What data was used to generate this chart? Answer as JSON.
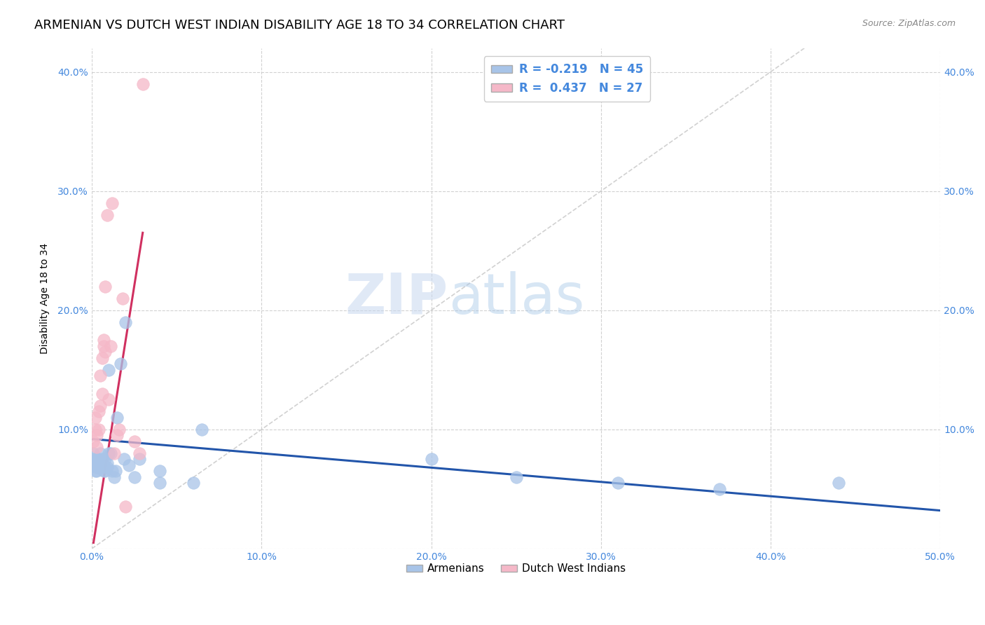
{
  "title": "ARMENIAN VS DUTCH WEST INDIAN DISABILITY AGE 18 TO 34 CORRELATION CHART",
  "source": "Source: ZipAtlas.com",
  "ylabel": "Disability Age 18 to 34",
  "xlabel": "",
  "xlim": [
    0.0,
    0.5
  ],
  "ylim": [
    0.0,
    0.42
  ],
  "xticks": [
    0.0,
    0.1,
    0.2,
    0.3,
    0.4,
    0.5
  ],
  "yticks": [
    0.0,
    0.1,
    0.2,
    0.3,
    0.4
  ],
  "xticklabels": [
    "0.0%",
    "10.0%",
    "20.0%",
    "30.0%",
    "40.0%",
    "50.0%"
  ],
  "yticklabels": [
    "",
    "10.0%",
    "20.0%",
    "30.0%",
    "40.0%"
  ],
  "armenian_color": "#a8c4e8",
  "dutch_color": "#f5b8c8",
  "armenian_line_color": "#2255aa",
  "dutch_line_color": "#d03060",
  "watermark_zip": "ZIP",
  "watermark_atlas": "atlas",
  "title_fontsize": 13,
  "axis_label_fontsize": 10,
  "tick_fontsize": 10,
  "armenians_x": [
    0.001,
    0.001,
    0.002,
    0.002,
    0.002,
    0.003,
    0.003,
    0.003,
    0.003,
    0.004,
    0.004,
    0.004,
    0.005,
    0.005,
    0.005,
    0.006,
    0.006,
    0.007,
    0.007,
    0.008,
    0.008,
    0.009,
    0.009,
    0.01,
    0.01,
    0.011,
    0.012,
    0.013,
    0.014,
    0.015,
    0.017,
    0.019,
    0.02,
    0.022,
    0.025,
    0.028,
    0.04,
    0.04,
    0.06,
    0.065,
    0.2,
    0.25,
    0.31,
    0.37,
    0.44
  ],
  "armenians_y": [
    0.08,
    0.075,
    0.07,
    0.065,
    0.075,
    0.07,
    0.068,
    0.072,
    0.065,
    0.072,
    0.068,
    0.075,
    0.08,
    0.072,
    0.07,
    0.075,
    0.068,
    0.065,
    0.07,
    0.075,
    0.065,
    0.068,
    0.072,
    0.15,
    0.08,
    0.08,
    0.065,
    0.06,
    0.065,
    0.11,
    0.155,
    0.075,
    0.19,
    0.07,
    0.06,
    0.075,
    0.065,
    0.055,
    0.055,
    0.1,
    0.075,
    0.06,
    0.055,
    0.05,
    0.055
  ],
  "dutch_x": [
    0.001,
    0.002,
    0.002,
    0.003,
    0.003,
    0.004,
    0.004,
    0.005,
    0.005,
    0.006,
    0.006,
    0.007,
    0.007,
    0.008,
    0.008,
    0.009,
    0.01,
    0.011,
    0.012,
    0.013,
    0.015,
    0.016,
    0.018,
    0.02,
    0.025,
    0.028,
    0.03
  ],
  "dutch_y": [
    0.09,
    0.1,
    0.11,
    0.085,
    0.095,
    0.1,
    0.115,
    0.12,
    0.145,
    0.13,
    0.16,
    0.17,
    0.175,
    0.22,
    0.165,
    0.28,
    0.125,
    0.17,
    0.29,
    0.08,
    0.095,
    0.1,
    0.21,
    0.035,
    0.09,
    0.08,
    0.39
  ],
  "arm_line_x0": 0.0,
  "arm_line_x1": 0.5,
  "arm_line_y0": 0.092,
  "arm_line_y1": 0.032,
  "dut_line_x0": 0.001,
  "dut_line_x1": 0.03,
  "dut_line_y0": 0.005,
  "dut_line_y1": 0.265
}
